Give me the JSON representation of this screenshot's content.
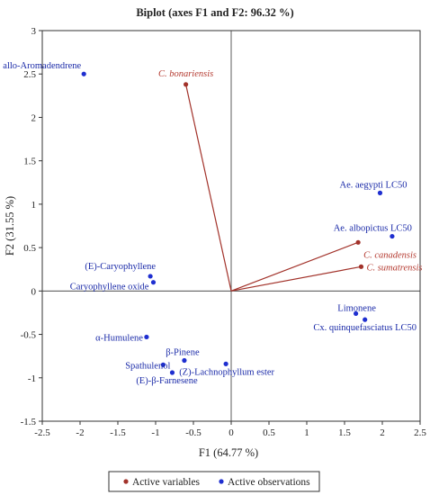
{
  "chart_data": {
    "type": "scatter",
    "title": "Biplot (axes F1 and F2: 96.32 %)",
    "xlabel": "F1 (64.77 %)",
    "ylabel": "F2 (31.55 %)",
    "xlim": [
      -2.5,
      2.5
    ],
    "ylim": [
      -1.5,
      3
    ],
    "xticks": [
      -2.5,
      -2,
      -1.5,
      -1,
      -0.5,
      0,
      0.5,
      1,
      1.5,
      2,
      2.5
    ],
    "yticks": [
      -1.5,
      -1,
      -0.5,
      0,
      0.5,
      1,
      1.5,
      2,
      2.5,
      3
    ],
    "grid": false,
    "legend_position": "bottom",
    "legend": {
      "variables_label": "Active variables",
      "observations_label": "Active observations"
    },
    "colors": {
      "variables": "#a2322a",
      "observations": "#1f2fd0",
      "variable_text": "#b43a30",
      "observation_text": "#1a2aa8",
      "axis": "#333333"
    },
    "variables": [
      {
        "label": "C. bonariensis",
        "x": -0.6,
        "y": 2.38
      },
      {
        "label": "C. canadensis",
        "x": 1.68,
        "y": 0.56
      },
      {
        "label": "C. sumatrensis",
        "x": 1.72,
        "y": 0.28
      }
    ],
    "observations": [
      {
        "label": "allo-Aromadendrene",
        "x": -1.95,
        "y": 2.5
      },
      {
        "label": "Ae. aegypti LC50",
        "x": 1.97,
        "y": 1.13
      },
      {
        "label": "Ae. albopictus LC50",
        "x": 2.13,
        "y": 0.63
      },
      {
        "label": "(E)-Caryophyllene",
        "x": -1.07,
        "y": 0.17
      },
      {
        "label": "Caryophyllene oxide",
        "x": -1.03,
        "y": 0.1
      },
      {
        "label": "Limonene",
        "x": 1.65,
        "y": -0.26
      },
      {
        "label": "Cx. quinquefasciatus LC50",
        "x": 1.77,
        "y": -0.33
      },
      {
        "label": "α-Humulene",
        "x": -1.12,
        "y": -0.53
      },
      {
        "label": "β-Pinene",
        "x": -0.62,
        "y": -0.8
      },
      {
        "label": "Spathulenol",
        "x": -0.9,
        "y": -0.85
      },
      {
        "label": "(Z)-Lachnophyllum ester",
        "x": -0.07,
        "y": -0.84
      },
      {
        "label": "(E)-β-Farnesene",
        "x": -0.78,
        "y": -0.94
      }
    ]
  }
}
